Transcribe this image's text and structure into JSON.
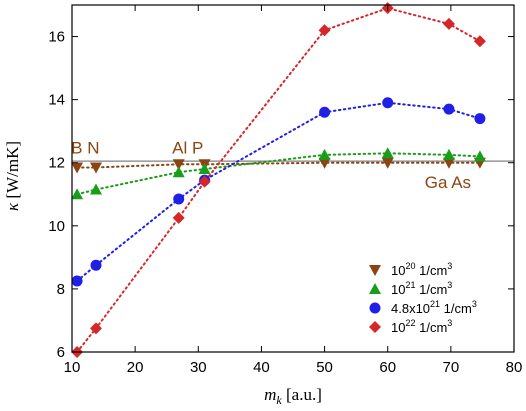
{
  "chart_data": {
    "type": "scatter",
    "xlabel": "m_k [a.u.]",
    "xlabel_main": "m",
    "xlabel_sub": "k",
    "xlabel_unit": " [a.u.]",
    "ylabel": "κ [W/mK]",
    "ylabel_symbol": "κ",
    "ylabel_unit": " [W/mK]",
    "xlim": [
      10,
      80
    ],
    "ylim": [
      6,
      17
    ],
    "xticks": [
      10,
      20,
      30,
      40,
      50,
      60,
      70,
      80
    ],
    "yticks": [
      6,
      8,
      10,
      12,
      14,
      16
    ],
    "grid": false,
    "legend_position": "bottom-right",
    "reference_line": {
      "y": 12.05,
      "color": "#808080"
    },
    "annotations": [
      {
        "text": "B N",
        "x": 10.5,
        "y": 12.3
      },
      {
        "text": "Al P",
        "x": 26.5,
        "y": 12.3
      },
      {
        "text": "Ga As",
        "x": 66.5,
        "y": 11.2
      }
    ],
    "series": [
      {
        "name": "10^20 1/cm^3",
        "legend_base": "10",
        "legend_exp": "20",
        "legend_unit": " 1/cm",
        "legend_unit_exp": "3",
        "color": "#8b4513",
        "marker": "triangle-down",
        "x": [
          10.8,
          13.8,
          26.9,
          31.0,
          50.0,
          60.0,
          69.7,
          74.6
        ],
        "y": [
          11.85,
          11.85,
          11.95,
          11.95,
          12.0,
          12.0,
          12.0,
          12.0
        ]
      },
      {
        "name": "10^21 1/cm^3",
        "legend_base": "10",
        "legend_exp": "21",
        "legend_unit": " 1/cm",
        "legend_unit_exp": "3",
        "color": "#1a9e1a",
        "marker": "triangle-up",
        "x": [
          10.8,
          13.8,
          26.9,
          31.0,
          50.0,
          60.0,
          69.7,
          74.6
        ],
        "y": [
          11.0,
          11.15,
          11.7,
          11.8,
          12.25,
          12.3,
          12.25,
          12.2
        ]
      },
      {
        "name": "4.8x10^21 1/cm^3",
        "legend_base": "4.8x10",
        "legend_exp": "21",
        "legend_unit": " 1/cm",
        "legend_unit_exp": "3",
        "color": "#1f1fe6",
        "marker": "circle",
        "x": [
          10.8,
          13.8,
          26.9,
          31.0,
          50.0,
          60.0,
          69.7,
          74.6
        ],
        "y": [
          8.25,
          8.75,
          10.85,
          11.45,
          13.6,
          13.9,
          13.7,
          13.4
        ]
      },
      {
        "name": "10^22 1/cm^3",
        "legend_base": "10",
        "legend_exp": "22",
        "legend_unit": " 1/cm",
        "legend_unit_exp": "3",
        "color": "#d62728",
        "marker": "diamond",
        "x": [
          10.8,
          13.8,
          26.9,
          31.0,
          50.0,
          60.0,
          69.7,
          74.6
        ],
        "y": [
          6.0,
          6.75,
          10.25,
          11.4,
          16.2,
          16.9,
          16.4,
          15.85
        ]
      }
    ]
  }
}
